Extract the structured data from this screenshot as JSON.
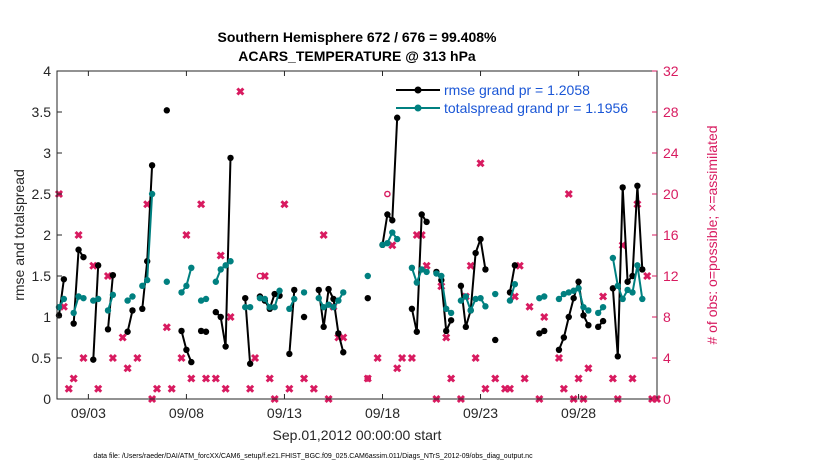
{
  "chart_data": {
    "type": "line",
    "title": "Southern Hemisphere 672 / 676 = 99.408%",
    "subtitle": "ACARS_TEMPERATURE @ 313 hPa",
    "xlabel": "Sep.01,2012 00:00:00 start",
    "ylabel": "rmse and totalspread",
    "ylabel_right": "# of obs: o=possible; ×=assimilated",
    "footnote": "data file: /Users/raeder/DAI/ATM_forcXX/CAM6_setup/f.e21.FHIST_BGC.f09_025.CAM6assim.011/Diags_NTrS_2012-09/obs_diag_output.nc",
    "xlim": [
      1.4,
      32.0
    ],
    "ylim": [
      0,
      4
    ],
    "ylim_right": [
      0,
      32
    ],
    "x_ticks": [
      3,
      8,
      13,
      18,
      23,
      28
    ],
    "x_tick_labels": [
      "09/03",
      "09/08",
      "09/13",
      "09/18",
      "09/23",
      "09/28"
    ],
    "y_ticks": [
      0,
      0.5,
      1,
      1.5,
      2,
      2.5,
      3,
      3.5,
      4
    ],
    "y_tick_labels": [
      "0",
      "0.5",
      "1",
      "1.5",
      "2",
      "2.5",
      "3",
      "3.5",
      "4"
    ],
    "y_right_ticks": [
      0,
      4,
      8,
      12,
      16,
      20,
      24,
      28,
      32
    ],
    "y_right_tick_labels": [
      "0",
      "4",
      "8",
      "12",
      "16",
      "20",
      "24",
      "28",
      "32"
    ],
    "grid": false,
    "legend_position": "top-right",
    "series": [
      {
        "name": "rmse grand pr = 1.2058",
        "color": "#000000",
        "axis": "left",
        "points": [
          [
            1.5,
            1.02
          ],
          [
            1.75,
            1.46
          ],
          [
            2.25,
            0.92
          ],
          [
            2.5,
            1.82
          ],
          [
            2.75,
            1.73
          ],
          [
            3.25,
            0.48
          ],
          [
            3.5,
            1.63
          ],
          [
            4.0,
            0.85
          ],
          [
            4.25,
            1.51
          ],
          [
            5.0,
            0.82
          ],
          [
            5.25,
            1.08
          ],
          [
            5.75,
            1.1
          ],
          [
            6.0,
            1.68
          ],
          [
            6.25,
            2.85
          ],
          [
            7.0,
            3.52
          ],
          [
            7.75,
            0.83
          ],
          [
            8.0,
            0.6
          ],
          [
            8.25,
            0.45
          ],
          [
            8.75,
            0.83
          ],
          [
            9.0,
            0.82
          ],
          [
            9.5,
            1.06
          ],
          [
            9.75,
            1.0
          ],
          [
            10.0,
            0.64
          ],
          [
            10.25,
            2.94
          ],
          [
            11.0,
            1.23
          ],
          [
            11.25,
            0.43
          ],
          [
            11.75,
            1.25
          ],
          [
            12.0,
            1.2
          ],
          [
            12.25,
            1.1
          ],
          [
            12.5,
            1.28
          ],
          [
            12.75,
            1.26
          ],
          [
            13.25,
            0.55
          ],
          [
            13.5,
            1.33
          ],
          [
            14.0,
            1.0
          ],
          [
            14.75,
            1.33
          ],
          [
            15.0,
            0.88
          ],
          [
            15.25,
            1.34
          ],
          [
            15.5,
            1.22
          ],
          [
            15.75,
            0.8
          ],
          [
            16.0,
            0.57
          ],
          [
            17.25,
            1.23
          ],
          [
            18.0,
            1.88
          ],
          [
            18.25,
            2.25
          ],
          [
            18.5,
            2.18
          ],
          [
            18.75,
            3.43
          ],
          [
            19.5,
            1.1
          ],
          [
            19.75,
            0.82
          ],
          [
            20.0,
            2.25
          ],
          [
            20.25,
            2.16
          ],
          [
            20.75,
            1.55
          ],
          [
            21.0,
            1.45
          ],
          [
            21.25,
            0.83
          ],
          [
            21.5,
            0.96
          ],
          [
            22.0,
            1.38
          ],
          [
            22.25,
            0.88
          ],
          [
            22.5,
            1.08
          ],
          [
            22.75,
            1.78
          ],
          [
            23.0,
            1.95
          ],
          [
            23.25,
            1.58
          ],
          [
            23.75,
            0.72
          ],
          [
            24.5,
            1.3
          ],
          [
            24.75,
            1.63
          ],
          [
            26.0,
            0.8
          ],
          [
            26.25,
            0.83
          ],
          [
            27.0,
            0.6
          ],
          [
            27.25,
            0.75
          ],
          [
            27.5,
            1.0
          ],
          [
            27.75,
            1.23
          ],
          [
            28.0,
            1.43
          ],
          [
            28.25,
            1.02
          ],
          [
            28.5,
            0.9
          ],
          [
            29.0,
            0.88
          ],
          [
            29.25,
            0.95
          ],
          [
            29.75,
            1.35
          ],
          [
            30.0,
            0.52
          ],
          [
            30.25,
            2.58
          ],
          [
            30.5,
            1.43
          ],
          [
            30.75,
            1.5
          ],
          [
            31.0,
            2.6
          ],
          [
            31.25,
            1.58
          ]
        ]
      },
      {
        "name": "totalspread grand pr = 1.1956",
        "color": "#008080",
        "axis": "left",
        "points": [
          [
            1.5,
            1.12
          ],
          [
            1.75,
            1.22
          ],
          [
            2.25,
            1.05
          ],
          [
            2.5,
            1.25
          ],
          [
            2.75,
            1.23
          ],
          [
            3.25,
            1.2
          ],
          [
            3.5,
            1.22
          ],
          [
            4.0,
            1.08
          ],
          [
            4.25,
            1.27
          ],
          [
            5.0,
            1.2
          ],
          [
            5.25,
            1.25
          ],
          [
            5.75,
            1.38
          ],
          [
            6.0,
            1.45
          ],
          [
            6.25,
            2.5
          ],
          [
            7.0,
            1.43
          ],
          [
            7.75,
            1.3
          ],
          [
            8.0,
            1.38
          ],
          [
            8.25,
            1.6
          ],
          [
            8.75,
            1.2
          ],
          [
            9.0,
            1.22
          ],
          [
            9.5,
            1.43
          ],
          [
            9.75,
            1.58
          ],
          [
            10.0,
            1.63
          ],
          [
            10.25,
            1.68
          ],
          [
            11.0,
            1.12
          ],
          [
            11.25,
            1.12
          ],
          [
            11.75,
            1.23
          ],
          [
            12.0,
            1.22
          ],
          [
            12.25,
            1.12
          ],
          [
            12.5,
            1.12
          ],
          [
            12.75,
            1.32
          ],
          [
            13.25,
            1.1
          ],
          [
            13.5,
            1.22
          ],
          [
            14.0,
            1.3
          ],
          [
            14.75,
            1.23
          ],
          [
            15.0,
            1.12
          ],
          [
            15.25,
            1.15
          ],
          [
            15.5,
            1.12
          ],
          [
            15.75,
            1.2
          ],
          [
            16.0,
            1.3
          ],
          [
            17.25,
            1.5
          ],
          [
            18.0,
            1.88
          ],
          [
            18.25,
            1.9
          ],
          [
            18.5,
            2.03
          ],
          [
            18.75,
            1.95
          ],
          [
            19.5,
            1.6
          ],
          [
            19.75,
            1.42
          ],
          [
            20.0,
            1.58
          ],
          [
            20.25,
            1.55
          ],
          [
            20.75,
            1.53
          ],
          [
            21.0,
            1.5
          ],
          [
            21.25,
            1.1
          ],
          [
            21.5,
            1.05
          ],
          [
            22.0,
            1.2
          ],
          [
            22.25,
            1.25
          ],
          [
            22.5,
            1.08
          ],
          [
            22.75,
            1.22
          ],
          [
            23.0,
            1.23
          ],
          [
            23.25,
            1.13
          ],
          [
            23.75,
            1.28
          ],
          [
            24.5,
            1.2
          ],
          [
            24.75,
            1.4
          ],
          [
            26.0,
            1.23
          ],
          [
            26.25,
            1.25
          ],
          [
            27.0,
            1.22
          ],
          [
            27.25,
            1.28
          ],
          [
            27.5,
            1.3
          ],
          [
            27.75,
            1.32
          ],
          [
            28.0,
            1.35
          ],
          [
            28.25,
            1.12
          ],
          [
            28.5,
            1.08
          ],
          [
            29.0,
            1.05
          ],
          [
            29.25,
            1.12
          ],
          [
            29.75,
            1.72
          ],
          [
            30.0,
            1.38
          ],
          [
            30.25,
            1.22
          ],
          [
            30.5,
            1.33
          ],
          [
            30.75,
            1.3
          ],
          [
            31.0,
            1.63
          ],
          [
            31.25,
            1.22
          ]
        ]
      }
    ],
    "obs_assimilated": {
      "color": "#d81b60",
      "marker": "x",
      "axis": "right",
      "points": [
        [
          1.5,
          20
        ],
        [
          1.75,
          9
        ],
        [
          2.0,
          1
        ],
        [
          2.25,
          2
        ],
        [
          2.5,
          16
        ],
        [
          2.75,
          4
        ],
        [
          3.25,
          13
        ],
        [
          3.5,
          1
        ],
        [
          4.0,
          12
        ],
        [
          4.25,
          4
        ],
        [
          4.75,
          6
        ],
        [
          5.0,
          3
        ],
        [
          5.5,
          4
        ],
        [
          6.0,
          19
        ],
        [
          6.25,
          0
        ],
        [
          6.5,
          1
        ],
        [
          7.0,
          7
        ],
        [
          7.25,
          1
        ],
        [
          7.75,
          4
        ],
        [
          8.0,
          16
        ],
        [
          8.25,
          2
        ],
        [
          8.75,
          19
        ],
        [
          9.0,
          2
        ],
        [
          9.5,
          2
        ],
        [
          9.75,
          14
        ],
        [
          10.0,
          1
        ],
        [
          10.25,
          8
        ],
        [
          10.75,
          30
        ],
        [
          11.25,
          1
        ],
        [
          11.5,
          4
        ],
        [
          12.0,
          12
        ],
        [
          12.25,
          2
        ],
        [
          12.5,
          0
        ],
        [
          13.0,
          19
        ],
        [
          13.25,
          1
        ],
        [
          14.0,
          2
        ],
        [
          14.5,
          1
        ],
        [
          15.0,
          16
        ],
        [
          15.25,
          0
        ],
        [
          15.5,
          9
        ],
        [
          15.75,
          6
        ],
        [
          16.0,
          6
        ],
        [
          17.25,
          2
        ],
        [
          17.75,
          4
        ],
        [
          18.5,
          15
        ],
        [
          18.75,
          3
        ],
        [
          19.0,
          4
        ],
        [
          19.5,
          4
        ],
        [
          19.75,
          16
        ],
        [
          20.0,
          16
        ],
        [
          20.25,
          13
        ],
        [
          20.75,
          0
        ],
        [
          21.0,
          11
        ],
        [
          21.25,
          6
        ],
        [
          21.5,
          2
        ],
        [
          22.0,
          0
        ],
        [
          22.25,
          10
        ],
        [
          22.5,
          13
        ],
        [
          22.75,
          4
        ],
        [
          23.0,
          23
        ],
        [
          23.25,
          1
        ],
        [
          23.75,
          2
        ],
        [
          24.25,
          1
        ],
        [
          24.5,
          1
        ],
        [
          24.75,
          10
        ],
        [
          25.0,
          13
        ],
        [
          25.25,
          2
        ],
        [
          25.5,
          9
        ],
        [
          26.0,
          0
        ],
        [
          26.25,
          8
        ],
        [
          27.0,
          4
        ],
        [
          27.25,
          1
        ],
        [
          27.5,
          20
        ],
        [
          27.75,
          0
        ],
        [
          28.0,
          2
        ],
        [
          28.25,
          0
        ],
        [
          28.5,
          3
        ],
        [
          29.25,
          10
        ],
        [
          29.75,
          2
        ],
        [
          30.0,
          0
        ],
        [
          30.25,
          15
        ],
        [
          30.75,
          2
        ],
        [
          31.0,
          19
        ],
        [
          31.5,
          12
        ],
        [
          31.75,
          0
        ],
        [
          32.0,
          0
        ]
      ]
    },
    "obs_possible": {
      "color": "#d81b60",
      "marker": "o",
      "axis": "right",
      "points": [
        [
          11.75,
          12
        ],
        [
          17.25,
          2
        ],
        [
          18.25,
          20
        ]
      ]
    }
  }
}
